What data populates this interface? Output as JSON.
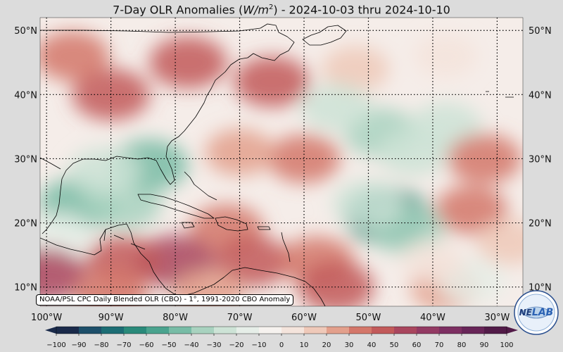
{
  "title": {
    "prefix": "7-Day OLR Anomalies (",
    "unit_base": "W/m",
    "unit_exp": "2",
    "suffix": ") - 2024-10-03 thru 2024-10-10"
  },
  "credit": "NOAA/PSL CPC Daily Blended OLR (CBO) - 1°, 1991-2020 CBO Anomaly",
  "logo": {
    "text_a": "NE",
    "text_b": "LAB"
  },
  "map": {
    "lat_labels": [
      "50°N",
      "40°N",
      "30°N",
      "20°N",
      "10°N"
    ],
    "lat_values": [
      50,
      40,
      30,
      20,
      10
    ],
    "lon_labels": [
      "100°W",
      "90°W",
      "80°W",
      "70°W",
      "60°W",
      "50°W",
      "40°W",
      "30°W"
    ],
    "lon_values": [
      -100,
      -90,
      -80,
      -70,
      -60,
      -50,
      -40,
      -30
    ],
    "extent": {
      "lon_min": -101,
      "lon_max": -26,
      "lat_min": 7,
      "lat_max": 52
    },
    "colors": {
      "ocean_neutral": "#f5ede9",
      "land_line": "#000000",
      "background": "#dcdcdc"
    }
  },
  "colorbar": {
    "ticks": [
      "−100",
      "−90",
      "−80",
      "−70",
      "−60",
      "−50",
      "−40",
      "−30",
      "−20",
      "−10",
      "0",
      "10",
      "20",
      "30",
      "40",
      "50",
      "60",
      "70",
      "80",
      "90",
      "100"
    ],
    "range": [
      -100,
      100
    ],
    "colors": [
      "#1a2a4a",
      "#1d4f6a",
      "#1c6d74",
      "#2a8a7a",
      "#4aa38e",
      "#78bca6",
      "#a8d2bf",
      "#cde3d6",
      "#e6eee8",
      "#f6f2ef",
      "#f4e4dc",
      "#efc9b9",
      "#e3a08c",
      "#d4776a",
      "#c25a5a",
      "#a9465e",
      "#933a63",
      "#7d2f62",
      "#682558",
      "#521b48"
    ]
  },
  "anomaly_regions": [
    {
      "lon": -78,
      "lat": 45,
      "value": 45
    },
    {
      "lon": -65,
      "lat": 42,
      "value": 40
    },
    {
      "lon": -90,
      "lat": 40,
      "value": 45
    },
    {
      "lon": -96,
      "lat": 46,
      "value": 35
    },
    {
      "lon": -52,
      "lat": 44,
      "value": 15
    },
    {
      "lon": -38,
      "lat": 46,
      "value": 5
    },
    {
      "lon": -48,
      "lat": 34,
      "value": -35
    },
    {
      "lon": -38,
      "lat": 35,
      "value": -30
    },
    {
      "lon": -55,
      "lat": 38,
      "value": -25
    },
    {
      "lon": -43,
      "lat": 31,
      "value": -25
    },
    {
      "lon": -60,
      "lat": 30,
      "value": 30
    },
    {
      "lon": -70,
      "lat": 31,
      "value": 20
    },
    {
      "lon": -32,
      "lat": 30,
      "value": 35
    },
    {
      "lon": -34,
      "lat": 22,
      "value": 30
    },
    {
      "lon": -95,
      "lat": 23,
      "value": -50
    },
    {
      "lon": -88,
      "lat": 23,
      "value": -40
    },
    {
      "lon": -84,
      "lat": 29,
      "value": -45
    },
    {
      "lon": -91,
      "lat": 28,
      "value": -30
    },
    {
      "lon": -98,
      "lat": 18,
      "value": -15
    },
    {
      "lon": -47,
      "lat": 21,
      "value": -70
    },
    {
      "lon": -44,
      "lat": 19,
      "value": -40
    },
    {
      "lon": -50,
      "lat": 23,
      "value": -25
    },
    {
      "lon": -72,
      "lat": 19,
      "value": 35
    },
    {
      "lon": -80,
      "lat": 14,
      "value": 50
    },
    {
      "lon": -88,
      "lat": 14,
      "value": 40
    },
    {
      "lon": -68,
      "lat": 14,
      "value": 40
    },
    {
      "lon": -58,
      "lat": 14,
      "value": 35
    },
    {
      "lon": -55,
      "lat": 10,
      "value": 40
    },
    {
      "lon": -100,
      "lat": 12,
      "value": 50
    },
    {
      "lon": -90,
      "lat": 9,
      "value": 35
    },
    {
      "lon": -75,
      "lat": 9,
      "value": 25
    },
    {
      "lon": -38,
      "lat": 10,
      "value": 25
    },
    {
      "lon": -34,
      "lat": 11,
      "value": -20
    },
    {
      "lon": -40,
      "lat": 14,
      "value": 5
    },
    {
      "lon": -28,
      "lat": 17,
      "value": 15
    }
  ]
}
